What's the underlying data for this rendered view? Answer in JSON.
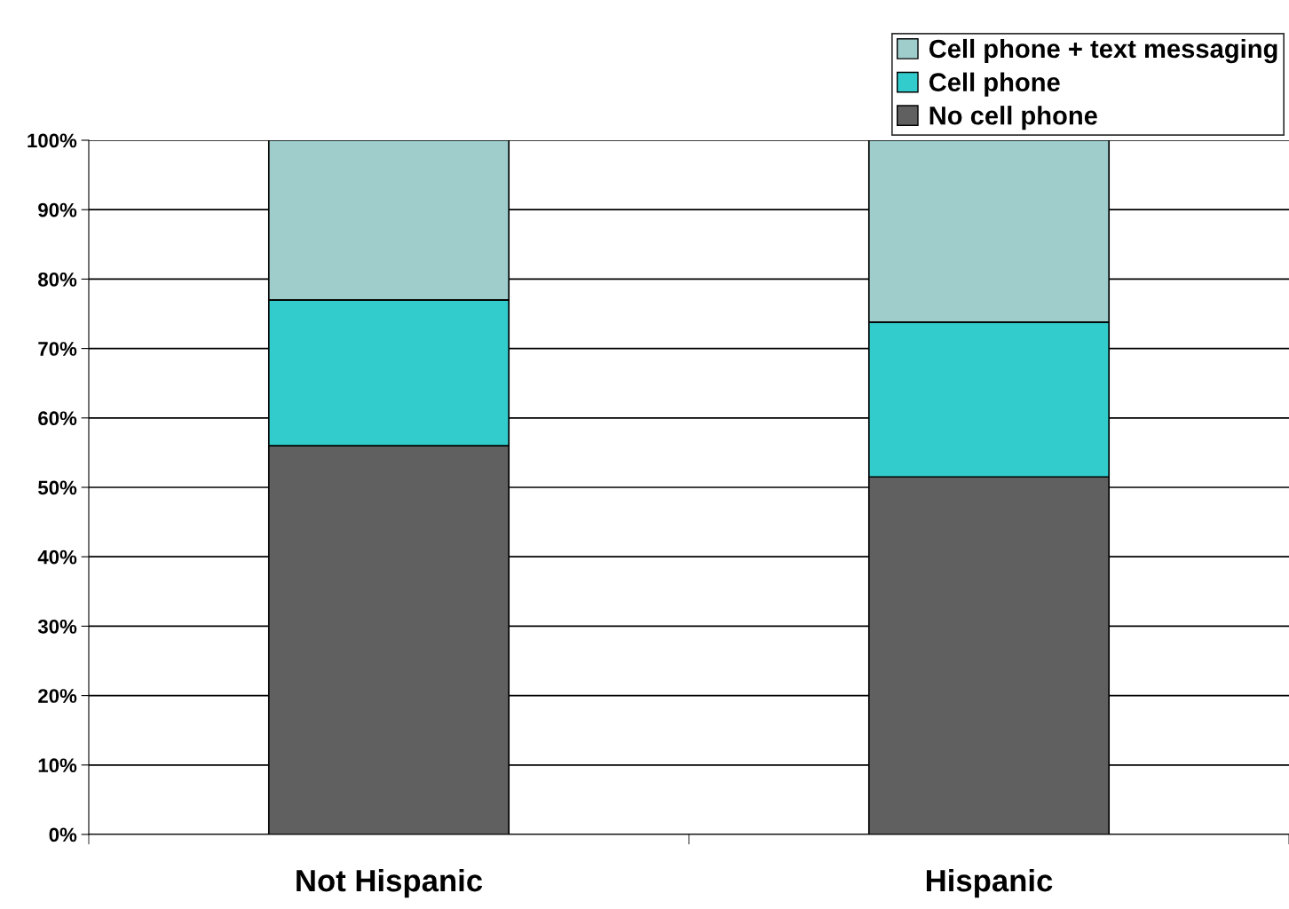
{
  "chart_data": {
    "type": "bar",
    "stacked": true,
    "categories": [
      "Not Hispanic",
      "Hispanic"
    ],
    "series": [
      {
        "name": "No cell phone",
        "color": "#606060",
        "values": [
          56.0,
          51.5
        ]
      },
      {
        "name": "Cell phone",
        "color": "#33cccc",
        "values": [
          21.0,
          22.3
        ]
      },
      {
        "name": "Cell phone + text messaging",
        "color": "#9ecdcc",
        "values": [
          23.0,
          26.2
        ]
      }
    ],
    "ylim": [
      0,
      100
    ],
    "yticks": [
      {
        "value": 0,
        "label": "0%"
      },
      {
        "value": 10,
        "label": "10%"
      },
      {
        "value": 20,
        "label": "20%"
      },
      {
        "value": 30,
        "label": "30%"
      },
      {
        "value": 40,
        "label": "40%"
      },
      {
        "value": 50,
        "label": "50%"
      },
      {
        "value": 60,
        "label": "60%"
      },
      {
        "value": 70,
        "label": "70%"
      },
      {
        "value": 80,
        "label": "80%"
      },
      {
        "value": 90,
        "label": "90%"
      },
      {
        "value": 100,
        "label": "100%"
      }
    ],
    "grid": "y",
    "legend": "top right"
  }
}
